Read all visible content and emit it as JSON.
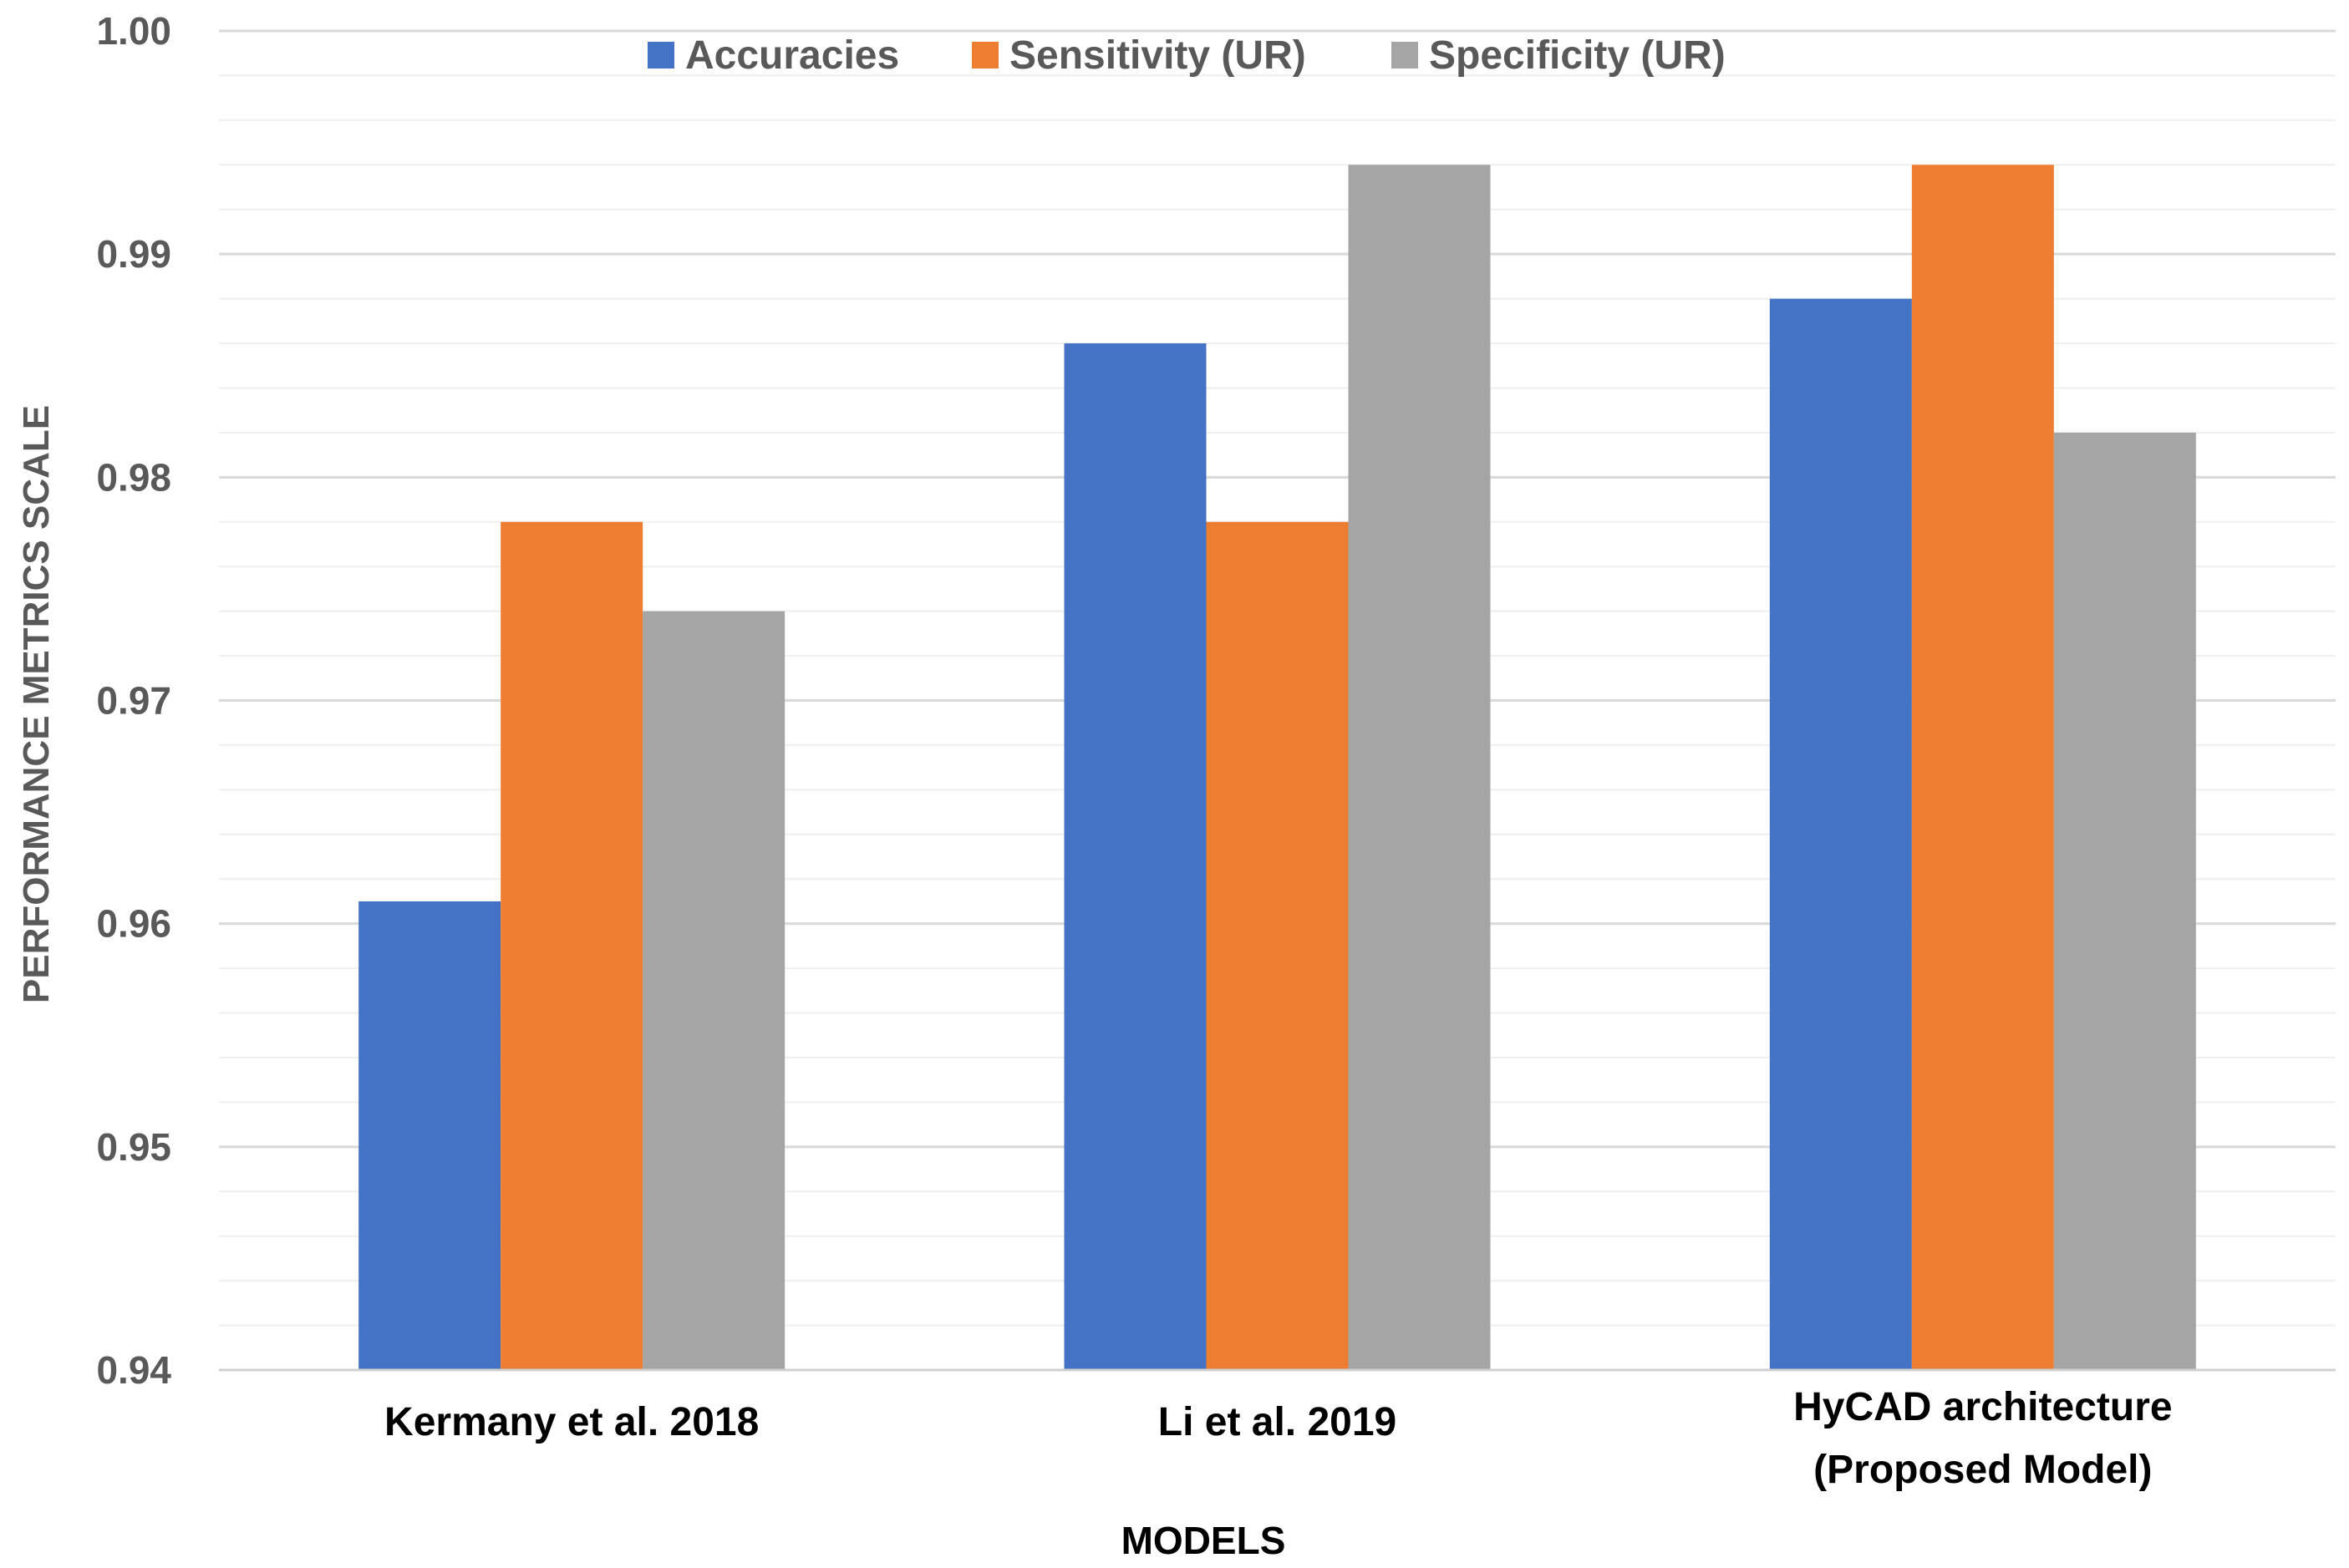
{
  "chart_data": {
    "type": "bar",
    "title": "",
    "xlabel": "MODELS",
    "ylabel": "PERFORMANCE METRICS SCALE",
    "ylim": [
      0.94,
      1.0
    ],
    "y_ticks": [
      "0.94",
      "0.95",
      "0.96",
      "0.97",
      "0.98",
      "0.99",
      "1.00"
    ],
    "y_tick_values": [
      0.94,
      0.95,
      0.96,
      0.97,
      0.98,
      0.99,
      1.0
    ],
    "minor_grid_step": 0.002,
    "legend_position": "top",
    "categories": [
      [
        "Kermany et al. 2018"
      ],
      [
        "Li et al. 2019"
      ],
      [
        "HyCAD architecture",
        "(Proposed Model)"
      ]
    ],
    "series": [
      {
        "name": "Accuracies",
        "color": "#4472C4",
        "values": [
          0.961,
          0.986,
          0.988
        ]
      },
      {
        "name": "Sensitivity (UR)",
        "color": "#ED7D31",
        "values": [
          0.978,
          0.978,
          0.994
        ]
      },
      {
        "name": "Specificity (UR)",
        "color": "#A5A5A5",
        "values": [
          0.974,
          0.994,
          0.982
        ]
      }
    ]
  }
}
